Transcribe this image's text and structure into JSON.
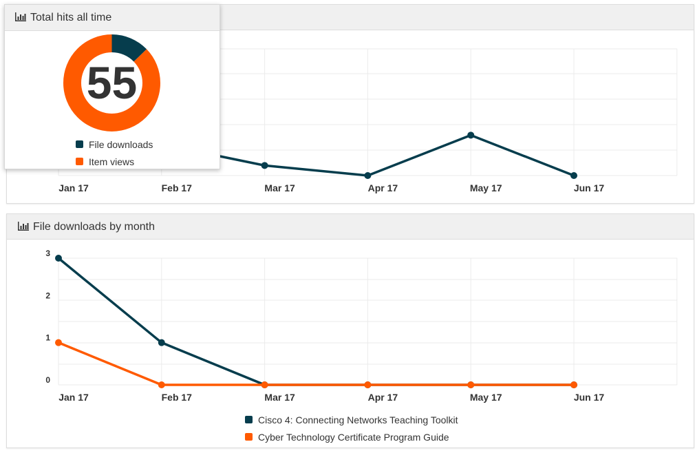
{
  "colors": {
    "file_downloads": "#063d4d",
    "item_views": "#ff5a00",
    "grid": "#ebebeb"
  },
  "top_panel": {
    "x_labels": [
      "Jan 17",
      "Feb 17",
      "Mar 17",
      "Apr 17",
      "May 17",
      "Jun 17"
    ]
  },
  "popup": {
    "title": "Total hits all time",
    "icon": "bar-chart-icon",
    "total": "55",
    "legend": [
      "File downloads",
      "Item views"
    ]
  },
  "bottom_panel": {
    "title": "File downloads by month",
    "icon": "bar-chart-icon",
    "legend": [
      "Cisco 4: Connecting Networks Teaching Toolkit",
      "Cyber Technology Certificate Program Guide"
    ]
  },
  "chart_data": [
    {
      "type": "pie",
      "title": "Total hits all time",
      "total": 55,
      "categories": [
        "File downloads",
        "Item views"
      ],
      "values": [
        7,
        48
      ]
    },
    {
      "type": "line",
      "categories": [
        "Jan 17",
        "Feb 17",
        "Mar 17",
        "Apr 17",
        "May 17",
        "Jun 17"
      ],
      "series": [
        {
          "values": [
            null,
            null,
            0.5,
            0,
            2,
            0
          ]
        }
      ],
      "grid": true
    },
    {
      "type": "line",
      "title": "File downloads by month",
      "categories": [
        "Jan 17",
        "Feb 17",
        "Mar 17",
        "Apr 17",
        "May 17",
        "Jun 17"
      ],
      "series": [
        {
          "name": "Cisco 4: Connecting Networks Teaching Toolkit",
          "values": [
            3,
            1,
            0,
            0,
            0,
            0
          ]
        },
        {
          "name": "Cyber Technology Certificate Program Guide",
          "values": [
            1,
            0,
            0,
            0,
            0,
            0
          ]
        }
      ],
      "ylim": [
        0,
        3
      ],
      "yticks": [
        0,
        1,
        2,
        3
      ],
      "grid": true,
      "legend": "bottom"
    }
  ]
}
